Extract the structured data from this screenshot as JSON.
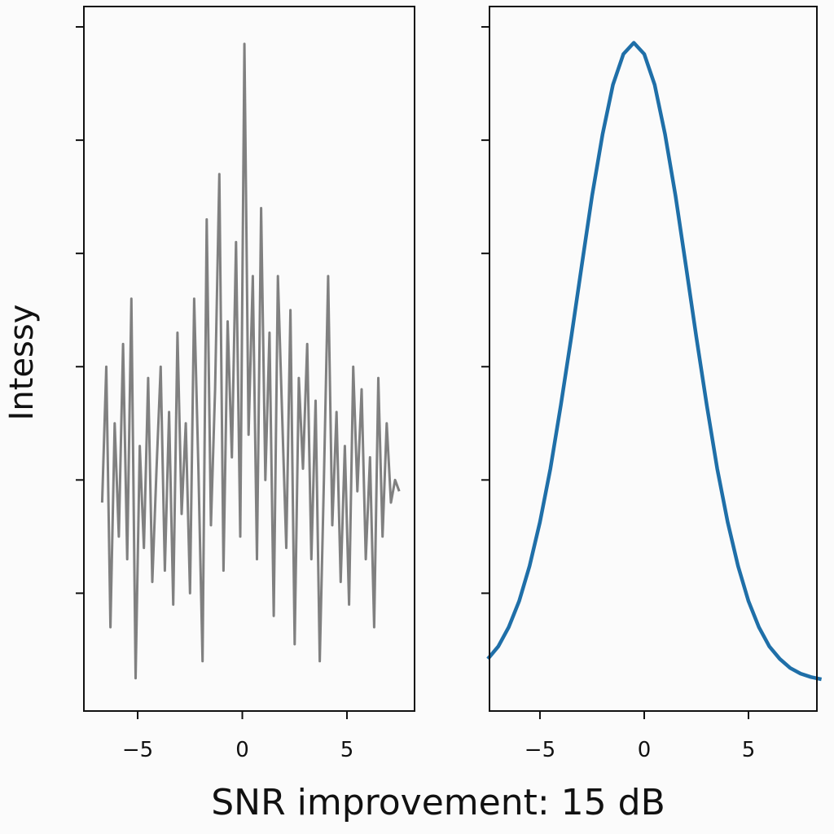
{
  "chart_data": [
    {
      "type": "line",
      "panel": "left",
      "title": "",
      "xlim": [
        -7.57,
        8.23
      ],
      "ylim": [
        -1.04,
        5.18
      ],
      "xticks": [
        -5,
        0,
        5
      ],
      "xtick_labels": [
        "−5",
        "0",
        "5"
      ],
      "yticks": [
        0,
        1,
        2,
        3,
        4,
        5
      ],
      "ytick_labels_shown": false,
      "grid": false,
      "series": [
        {
          "color": "#808080",
          "x_start": -6.7,
          "x_step": 0.2,
          "values": [
            0.8,
            2.0,
            -0.3,
            1.5,
            0.5,
            2.2,
            0.3,
            2.6,
            -0.75,
            1.3,
            0.4,
            1.9,
            0.1,
            1.1,
            2.0,
            0.2,
            1.6,
            -0.1,
            2.3,
            0.7,
            1.5,
            0.0,
            2.6,
            1.1,
            -0.6,
            3.3,
            0.6,
            1.8,
            3.7,
            0.2,
            2.4,
            1.2,
            3.1,
            0.5,
            4.85,
            1.4,
            2.8,
            0.3,
            3.4,
            1.0,
            2.3,
            -0.2,
            2.8,
            1.6,
            0.4,
            2.5,
            -0.45,
            1.9,
            1.1,
            2.2,
            0.3,
            1.7,
            -0.6,
            1.0,
            2.8,
            0.6,
            1.6,
            0.1,
            1.3,
            -0.1,
            2.0,
            0.9,
            1.8,
            0.3,
            1.2,
            -0.3,
            1.9,
            0.5,
            1.5,
            0.8,
            1.0,
            0.9
          ]
        }
      ]
    },
    {
      "type": "line",
      "panel": "right",
      "title": "",
      "xlim": [
        -7.42,
        8.28
      ],
      "ylim": [
        -1.04,
        5.18
      ],
      "xticks": [
        -5,
        0,
        5
      ],
      "xtick_labels": [
        "−5",
        "0",
        "5"
      ],
      "yticks": [
        0,
        1,
        2,
        3,
        4,
        5
      ],
      "ytick_labels_shown": false,
      "grid": false,
      "series": [
        {
          "color": "#1f6fa8",
          "x_start": -7.5,
          "x_step": 0.5,
          "values": [
            -0.58,
            -0.47,
            -0.3,
            -0.07,
            0.24,
            0.63,
            1.1,
            1.66,
            2.26,
            2.89,
            3.51,
            4.05,
            4.49,
            4.76,
            4.86,
            4.76,
            4.49,
            4.05,
            3.51,
            2.89,
            2.26,
            1.66,
            1.1,
            0.63,
            0.24,
            -0.07,
            -0.3,
            -0.47,
            -0.58,
            -0.66,
            -0.71,
            -0.74,
            -0.76
          ]
        }
      ]
    }
  ],
  "ylabel": "Intessy",
  "xlabel": "SNR improvement: 15 dB"
}
